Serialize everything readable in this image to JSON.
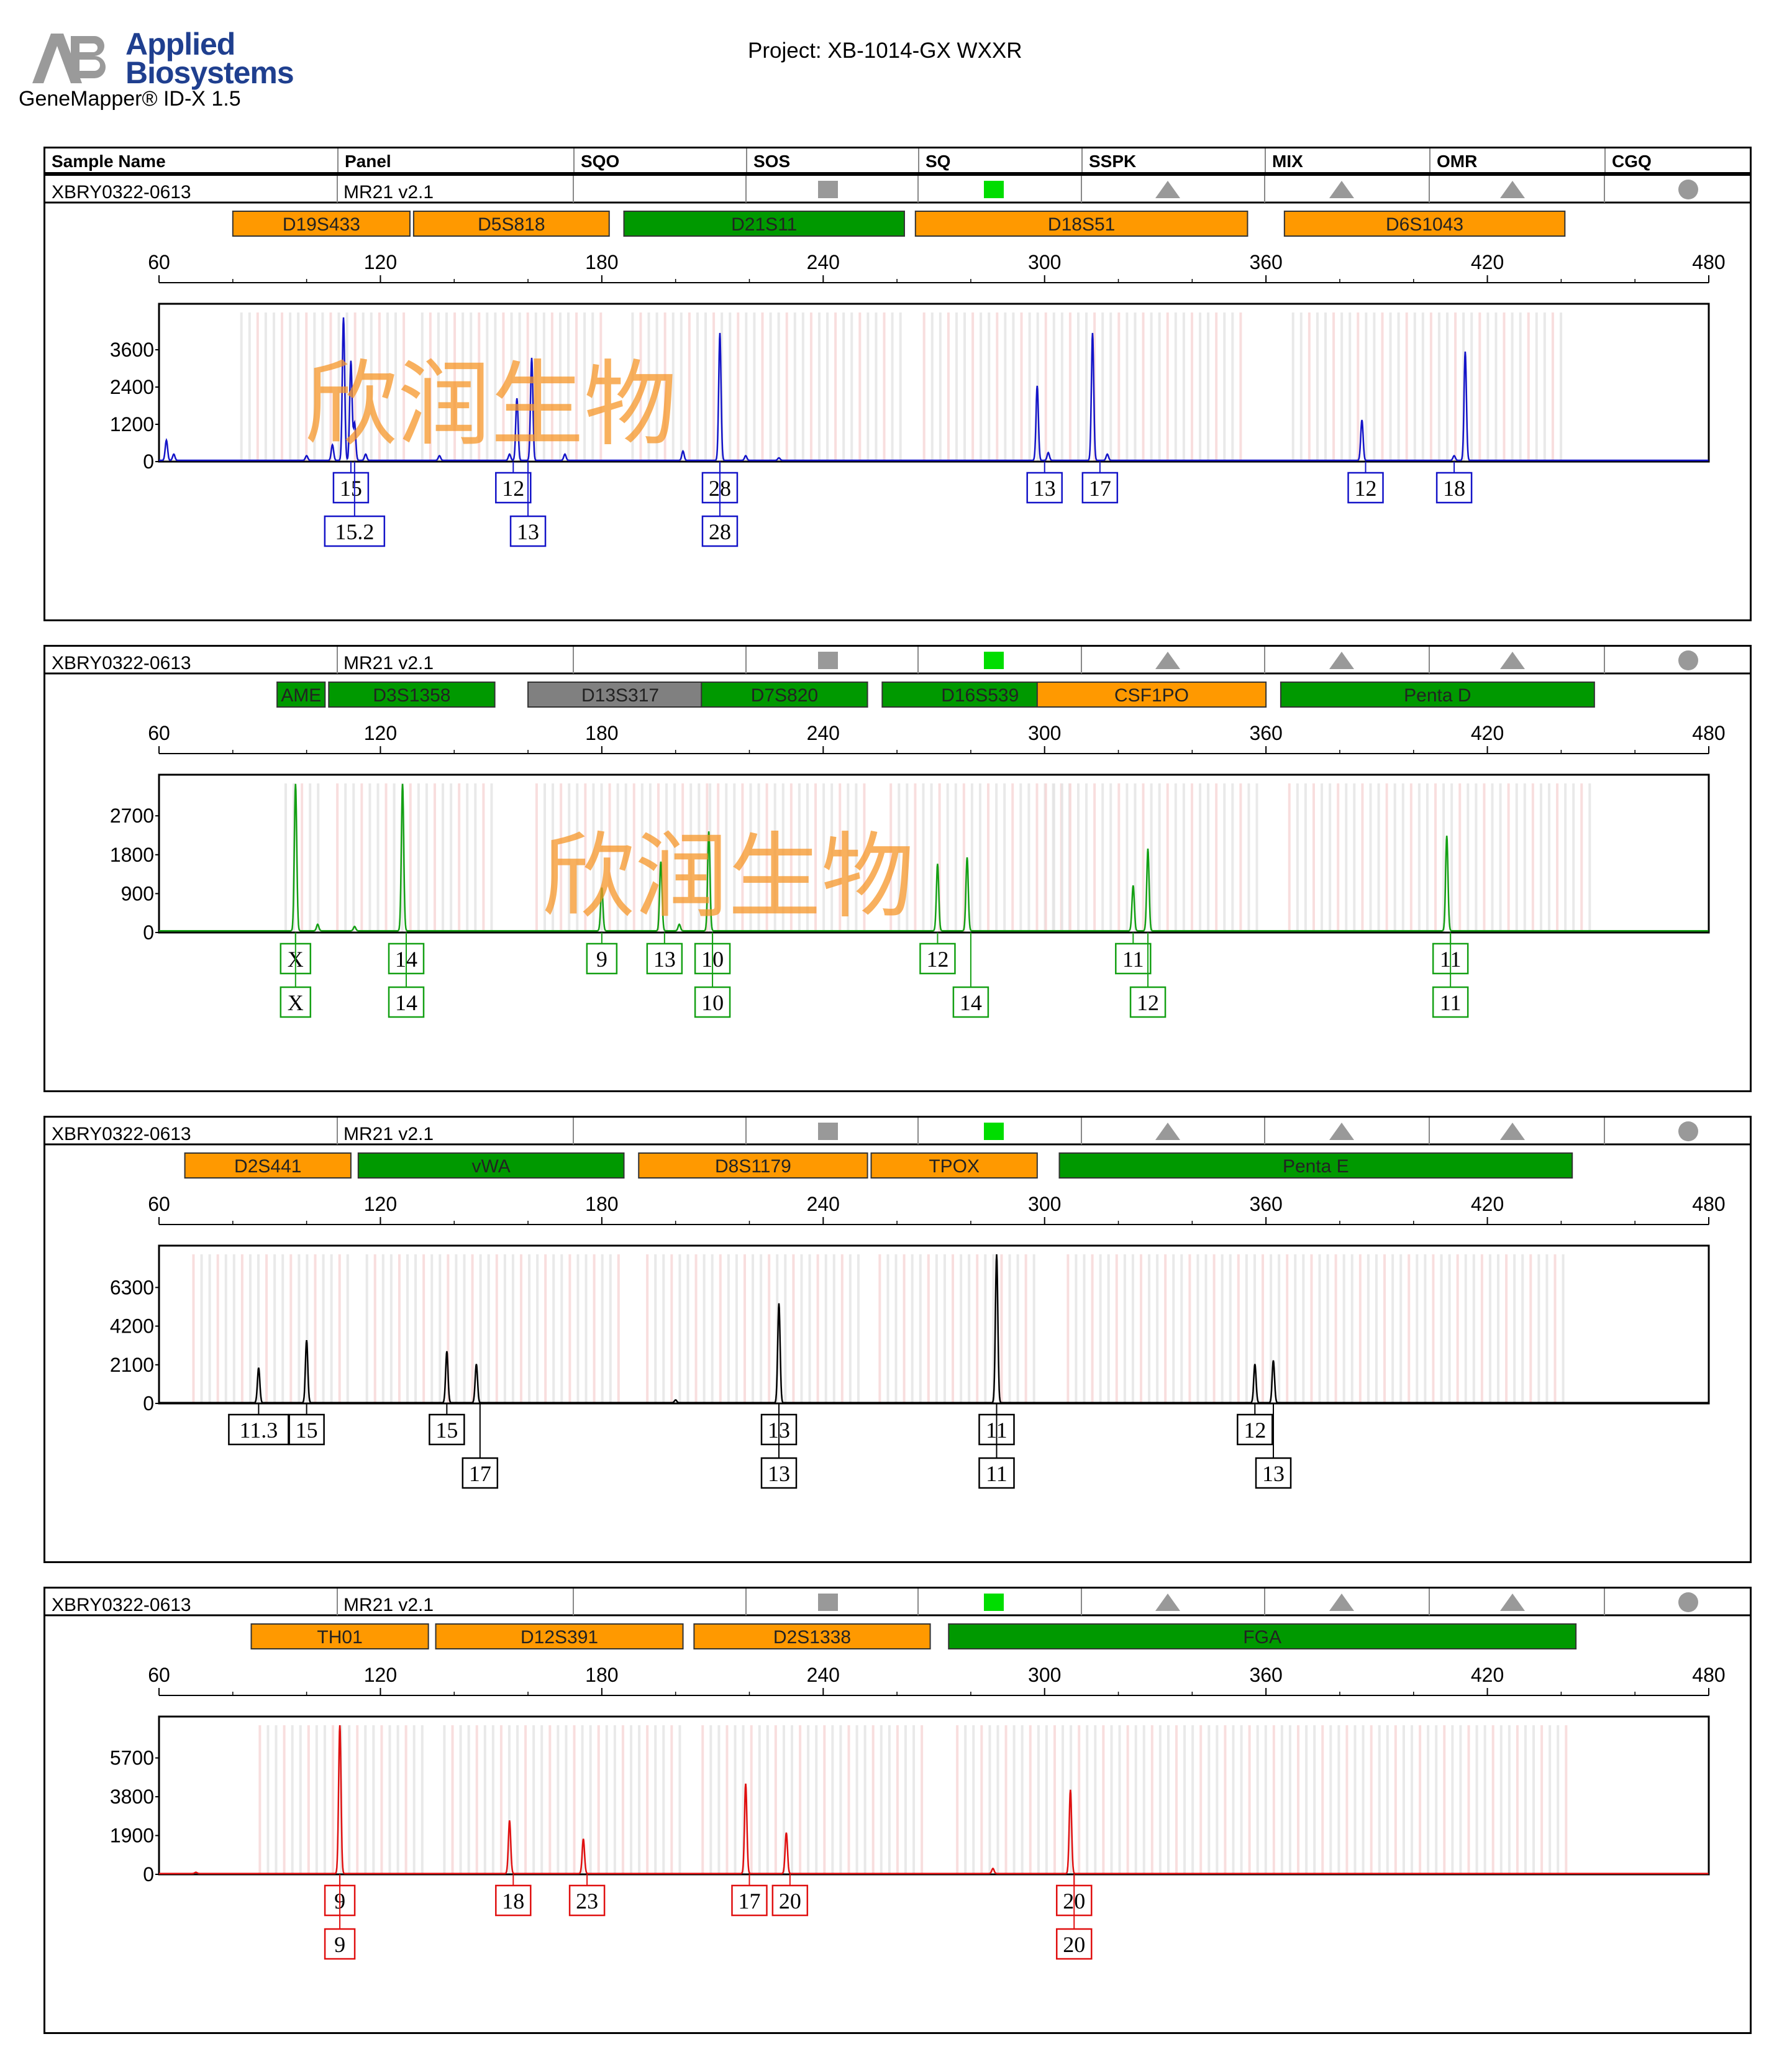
{
  "brand": {
    "line1": "Applied",
    "line2": "Biosystems",
    "product": "GeneMapper® ID-X  1.5"
  },
  "project": "Project: XB-1014-GX WXXR",
  "header": [
    "Sample Name",
    "Panel",
    "SQO",
    "SOS",
    "SQ",
    "SSPK",
    "MIX",
    "OMR",
    "CGQ"
  ],
  "colors": {
    "blue": "#1414c8",
    "green": "#14a014",
    "black": "#000000",
    "red": "#e01010",
    "orange": "#ff9900",
    "locus_green": "#009900",
    "locus_gray": "#808080",
    "pass": "#00dd00",
    "indicator": "#999999"
  },
  "watermark": "欣润生物",
  "chart_data": [
    {
      "type": "line",
      "sample": "XBRY0322-0613",
      "panel": "MR21  v2.1",
      "color": "#1414c8",
      "xlim": [
        60,
        480
      ],
      "xticks": [
        60,
        120,
        180,
        240,
        300,
        360,
        420,
        480
      ],
      "yticks": [
        0,
        1200,
        2400,
        3600
      ],
      "ylim": [
        0,
        4800
      ],
      "loci": [
        {
          "name": "D19S433",
          "from": 80,
          "to": 128,
          "color": "orange"
        },
        {
          "name": "D5S818",
          "from": 129,
          "to": 182,
          "color": "orange"
        },
        {
          "name": "D21S11",
          "from": 186,
          "to": 262,
          "color": "green"
        },
        {
          "name": "D18S51",
          "from": 265,
          "to": 355,
          "color": "orange"
        },
        {
          "name": "D6S1043",
          "from": 365,
          "to": 441,
          "color": "orange"
        }
      ],
      "peaks": [
        [
          62,
          650
        ],
        [
          64,
          200
        ],
        [
          100,
          150
        ],
        [
          107,
          500
        ],
        [
          110,
          4600
        ],
        [
          112,
          3200
        ],
        [
          113,
          1200
        ],
        [
          116,
          200
        ],
        [
          136,
          150
        ],
        [
          155,
          200
        ],
        [
          157,
          2000
        ],
        [
          161,
          3300
        ],
        [
          170,
          200
        ],
        [
          202,
          300
        ],
        [
          212,
          4100
        ],
        [
          219,
          150
        ],
        [
          228,
          80
        ],
        [
          298,
          2400
        ],
        [
          301,
          250
        ],
        [
          313,
          4100
        ],
        [
          317,
          200
        ],
        [
          386,
          1300
        ],
        [
          411,
          150
        ],
        [
          414,
          3500
        ]
      ],
      "alleles": [
        {
          "x": 112,
          "row": 1,
          "label": "15"
        },
        {
          "x": 113,
          "row": 2,
          "label": "15.2"
        },
        {
          "x": 156,
          "row": 1,
          "label": "12"
        },
        {
          "x": 160,
          "row": 2,
          "label": "13"
        },
        {
          "x": 212,
          "row": 1,
          "label": "28"
        },
        {
          "x": 212,
          "row": 2,
          "label": "28"
        },
        {
          "x": 300,
          "row": 1,
          "label": "13"
        },
        {
          "x": 315,
          "row": 1,
          "label": "17"
        },
        {
          "x": 387,
          "row": 1,
          "label": "12"
        },
        {
          "x": 411,
          "row": 1,
          "label": "18"
        }
      ]
    },
    {
      "type": "line",
      "sample": "XBRY0322-0613",
      "panel": "MR21  v2.1",
      "color": "#14a014",
      "xlim": [
        60,
        480
      ],
      "xticks": [
        60,
        120,
        180,
        240,
        300,
        360,
        420,
        480
      ],
      "yticks": [
        0,
        900,
        1800,
        2700
      ],
      "ylim": [
        0,
        3450
      ],
      "loci": [
        {
          "name": "AME",
          "from": 92,
          "to": 105,
          "color": "green"
        },
        {
          "name": "D3S1358",
          "from": 106,
          "to": 151,
          "color": "green"
        },
        {
          "name": "D13S317",
          "from": 160,
          "to": 210,
          "color": "gray"
        },
        {
          "name": "D7S820",
          "from": 207,
          "to": 252,
          "color": "green"
        },
        {
          "name": "D16S539",
          "from": 256,
          "to": 309,
          "color": "green"
        },
        {
          "name": "CSF1PO",
          "from": 298,
          "to": 360,
          "color": "orange"
        },
        {
          "name": "Penta D",
          "from": 364,
          "to": 449,
          "color": "green"
        }
      ],
      "peaks": [
        [
          97,
          3400
        ],
        [
          103,
          150
        ],
        [
          113,
          100
        ],
        [
          126,
          3400
        ],
        [
          180,
          1000
        ],
        [
          196,
          1600
        ],
        [
          201,
          150
        ],
        [
          209,
          2300
        ],
        [
          271,
          1550
        ],
        [
          279,
          1700
        ],
        [
          324,
          1050
        ],
        [
          328,
          1900
        ],
        [
          409,
          2200
        ]
      ],
      "alleles": [
        {
          "x": 97,
          "row": 1,
          "label": "X"
        },
        {
          "x": 97,
          "row": 2,
          "label": "X"
        },
        {
          "x": 127,
          "row": 1,
          "label": "14"
        },
        {
          "x": 127,
          "row": 2,
          "label": "14"
        },
        {
          "x": 180,
          "row": 1,
          "label": "9"
        },
        {
          "x": 197,
          "row": 1,
          "label": "13"
        },
        {
          "x": 210,
          "row": 1,
          "label": "10"
        },
        {
          "x": 210,
          "row": 2,
          "label": "10"
        },
        {
          "x": 271,
          "row": 1,
          "label": "12"
        },
        {
          "x": 280,
          "row": 2,
          "label": "14"
        },
        {
          "x": 324,
          "row": 1,
          "label": "11"
        },
        {
          "x": 328,
          "row": 2,
          "label": "12"
        },
        {
          "x": 410,
          "row": 1,
          "label": "11"
        },
        {
          "x": 410,
          "row": 2,
          "label": "11"
        }
      ]
    },
    {
      "type": "line",
      "sample": "XBRY0322-0613",
      "panel": "MR21  v2.1",
      "color": "#000000",
      "xlim": [
        60,
        480
      ],
      "xticks": [
        60,
        120,
        180,
        240,
        300,
        360,
        420,
        480
      ],
      "yticks": [
        0,
        2100,
        4200,
        6300
      ],
      "ylim": [
        0,
        8100
      ],
      "loci": [
        {
          "name": "D2S441",
          "from": 67,
          "to": 112,
          "color": "orange"
        },
        {
          "name": "vWA",
          "from": 114,
          "to": 186,
          "color": "green"
        },
        {
          "name": "D8S1179",
          "from": 190,
          "to": 252,
          "color": "orange"
        },
        {
          "name": "TPOX",
          "from": 253,
          "to": 298,
          "color": "orange"
        },
        {
          "name": "Penta E",
          "from": 304,
          "to": 443,
          "color": "green"
        }
      ],
      "peaks": [
        [
          87,
          1900
        ],
        [
          100,
          3400
        ],
        [
          138,
          2800
        ],
        [
          146,
          2100
        ],
        [
          200,
          150
        ],
        [
          228,
          5400
        ],
        [
          287,
          8100
        ],
        [
          357,
          2100
        ],
        [
          362,
          2300
        ]
      ],
      "alleles": [
        {
          "x": 87,
          "row": 1,
          "label": "11.3"
        },
        {
          "x": 100,
          "row": 1,
          "label": "15"
        },
        {
          "x": 138,
          "row": 1,
          "label": "15"
        },
        {
          "x": 147,
          "row": 2,
          "label": "17"
        },
        {
          "x": 228,
          "row": 1,
          "label": "13"
        },
        {
          "x": 228,
          "row": 2,
          "label": "13"
        },
        {
          "x": 287,
          "row": 1,
          "label": "11"
        },
        {
          "x": 287,
          "row": 2,
          "label": "11"
        },
        {
          "x": 357,
          "row": 1,
          "label": "12"
        },
        {
          "x": 362,
          "row": 2,
          "label": "13"
        }
      ]
    },
    {
      "type": "line",
      "sample": "XBRY0322-0613",
      "panel": "MR21  v2.1",
      "color": "#e01010",
      "xlim": [
        60,
        480
      ],
      "xticks": [
        60,
        120,
        180,
        240,
        300,
        360,
        420,
        480
      ],
      "yticks": [
        0,
        1900,
        3800,
        5700
      ],
      "ylim": [
        0,
        7300
      ],
      "loci": [
        {
          "name": "TH01",
          "from": 85,
          "to": 133,
          "color": "orange"
        },
        {
          "name": "D12S391",
          "from": 135,
          "to": 202,
          "color": "orange"
        },
        {
          "name": "D2S1338",
          "from": 205,
          "to": 269,
          "color": "orange"
        },
        {
          "name": "FGA",
          "from": 274,
          "to": 444,
          "color": "green"
        }
      ],
      "peaks": [
        [
          70,
          60
        ],
        [
          109,
          7300
        ],
        [
          155,
          2600
        ],
        [
          175,
          1700
        ],
        [
          219,
          4400
        ],
        [
          230,
          2000
        ],
        [
          286,
          250
        ],
        [
          307,
          4100
        ]
      ],
      "alleles": [
        {
          "x": 109,
          "row": 1,
          "label": "9"
        },
        {
          "x": 109,
          "row": 2,
          "label": "9"
        },
        {
          "x": 156,
          "row": 1,
          "label": "18"
        },
        {
          "x": 176,
          "row": 1,
          "label": "23"
        },
        {
          "x": 220,
          "row": 1,
          "label": "17"
        },
        {
          "x": 231,
          "row": 1,
          "label": "20"
        },
        {
          "x": 308,
          "row": 1,
          "label": "20"
        },
        {
          "x": 308,
          "row": 2,
          "label": "20"
        }
      ]
    }
  ]
}
